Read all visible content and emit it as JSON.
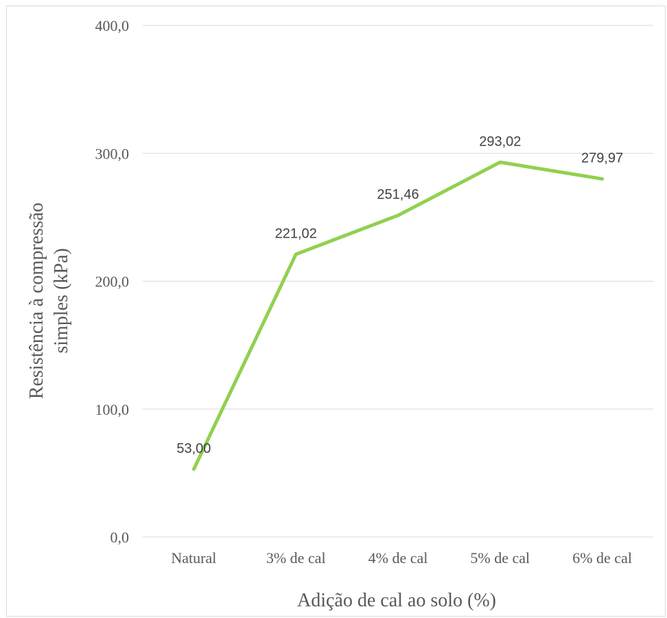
{
  "chart_data": {
    "type": "line",
    "categories": [
      "Natural",
      "3% de cal",
      "4% de cal",
      "5% de cal",
      "6% de cal"
    ],
    "values": [
      53.0,
      221.02,
      251.46,
      293.02,
      279.97
    ],
    "data_labels": [
      "53,00",
      "221,02",
      "251,46",
      "293,02",
      "279,97"
    ],
    "y_ticks": [
      {
        "value": 0,
        "label": "0,0"
      },
      {
        "value": 100,
        "label": "100,0"
      },
      {
        "value": 200,
        "label": "200,0"
      },
      {
        "value": 300,
        "label": "300,0"
      },
      {
        "value": 400,
        "label": "400,0"
      }
    ],
    "ylim": [
      0,
      400
    ],
    "xlabel": "Adição de cal ao solo (%)",
    "ylabel_lines": [
      "Resistência à compressão",
      "simples  (kPa)"
    ],
    "grid": true,
    "line_color": "#92d050",
    "grid_color": "#d9d9d9"
  }
}
